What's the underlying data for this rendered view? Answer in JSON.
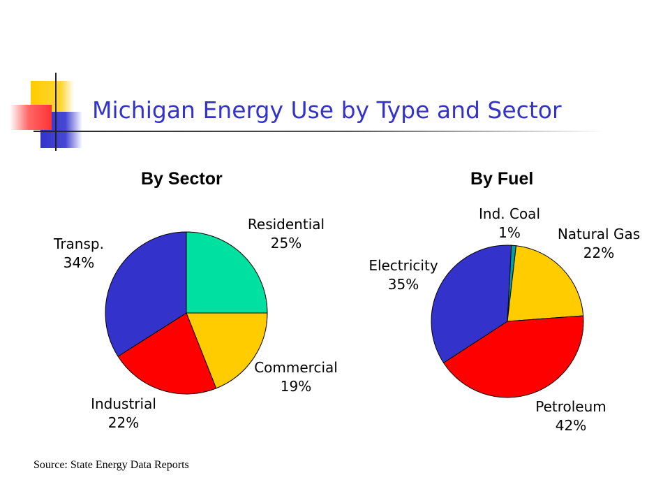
{
  "title": "Michigan Energy Use by Type and Sector",
  "source": "Source: State Energy Data Reports",
  "colors": {
    "title": "#3333cc",
    "blue": "#3333cc",
    "green": "#00e0a0",
    "yellow": "#ffcc00",
    "red": "#ff0000",
    "teal": "#00a0a0"
  },
  "chart_data": [
    {
      "type": "pie",
      "title": "By Sector",
      "slices": [
        {
          "label": "Residential",
          "pct_label": "25%",
          "value": 25,
          "color": "#00e0a0"
        },
        {
          "label": "Commercial",
          "pct_label": "19%",
          "value": 19,
          "color": "#ffcc00"
        },
        {
          "label": "Industrial",
          "pct_label": "22%",
          "value": 22,
          "color": "#ff0000"
        },
        {
          "label": "Transp.",
          "pct_label": "34%",
          "value": 34,
          "color": "#3333cc"
        }
      ]
    },
    {
      "type": "pie",
      "title": "By Fuel",
      "slices": [
        {
          "label": "Ind. Coal",
          "pct_label": "1%",
          "value": 1,
          "color": "#00a0a0"
        },
        {
          "label": "Natural Gas",
          "pct_label": "22%",
          "value": 22,
          "color": "#ffcc00"
        },
        {
          "label": "Petroleum",
          "pct_label": "42%",
          "value": 42,
          "color": "#ff0000"
        },
        {
          "label": "Electricity",
          "pct_label": "35%",
          "value": 35,
          "color": "#3333cc"
        }
      ]
    }
  ]
}
